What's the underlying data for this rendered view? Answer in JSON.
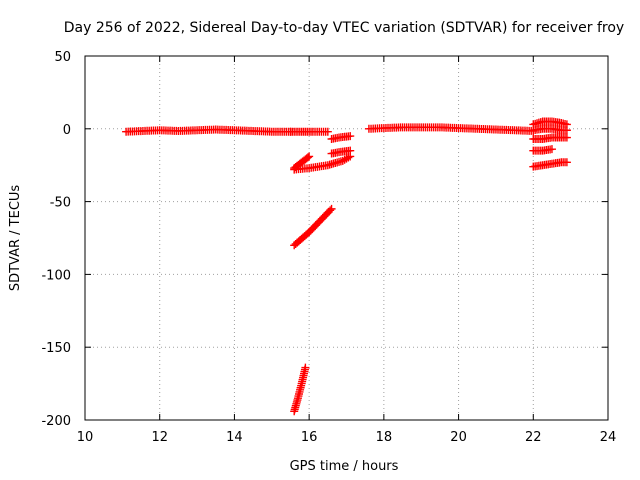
{
  "chart_data": {
    "type": "scatter",
    "title": "Day 256 of 2022, Sidereal Day-to-day VTEC variation (SDTVAR) for receiver froy",
    "xlabel": "GPS time / hours",
    "ylabel": "SDTVAR / TECUs",
    "xlim": [
      10,
      24
    ],
    "ylim": [
      -200,
      50
    ],
    "xticks": [
      "10",
      "12",
      "14",
      "16",
      "18",
      "20",
      "22",
      "24"
    ],
    "yticks": [
      "50",
      "0",
      "-50",
      "-100",
      "-150",
      "-200"
    ],
    "grid": true,
    "marker": "plus",
    "color": "#ff0000",
    "segments": [
      {
        "x": [
          11.1,
          12.0,
          12.5,
          13.0,
          13.5,
          14.0,
          14.5,
          15.0,
          15.5
        ],
        "y": [
          -2,
          -1,
          -1.5,
          -1,
          -0.5,
          -1,
          -1.5,
          -2,
          -2
        ]
      },
      {
        "x": [
          15.5,
          15.8,
          16.1,
          16.5
        ],
        "y": [
          -2,
          -2,
          -2,
          -2
        ]
      },
      {
        "x": [
          15.6,
          15.75,
          15.9,
          16.0
        ],
        "y": [
          -27,
          -24,
          -21,
          -19
        ]
      },
      {
        "x": [
          15.6,
          16.0,
          16.5,
          16.9,
          17.1
        ],
        "y": [
          -28,
          -27,
          -25,
          -22,
          -19
        ]
      },
      {
        "x": [
          16.6,
          16.8,
          17.1
        ],
        "y": [
          -7,
          -6,
          -5
        ]
      },
      {
        "x": [
          16.6,
          16.8,
          17.1
        ],
        "y": [
          -17,
          -16,
          -15
        ]
      },
      {
        "x": [
          15.6,
          16.0,
          16.3,
          16.6
        ],
        "y": [
          -80,
          -71,
          -63,
          -55
        ]
      },
      {
        "x": [
          15.6,
          15.7,
          15.8,
          15.9
        ],
        "y": [
          -194,
          -185,
          -175,
          -164
        ]
      },
      {
        "x": [
          17.6,
          18.0,
          18.5,
          19.0,
          19.5,
          20.0,
          20.5,
          21.0,
          21.5,
          22.0
        ],
        "y": [
          0,
          0.5,
          1,
          1,
          1,
          0.5,
          0,
          -0.5,
          -1,
          -1.5
        ]
      },
      {
        "x": [
          22.0,
          22.25,
          22.5,
          22.75,
          22.9
        ],
        "y": [
          3,
          5,
          5,
          4,
          3
        ]
      },
      {
        "x": [
          22.0,
          22.25,
          22.5,
          22.75,
          22.9
        ],
        "y": [
          -1,
          0,
          0,
          -1,
          -1
        ]
      },
      {
        "x": [
          22.0,
          22.25,
          22.5,
          22.75,
          22.9
        ],
        "y": [
          -7,
          -7,
          -6,
          -6,
          -6
        ]
      },
      {
        "x": [
          22.0,
          22.25,
          22.5
        ],
        "y": [
          -15,
          -15,
          -14
        ]
      },
      {
        "x": [
          22.0,
          22.25,
          22.5,
          22.75,
          22.9
        ],
        "y": [
          -26,
          -25,
          -24,
          -23,
          -23
        ]
      }
    ]
  }
}
